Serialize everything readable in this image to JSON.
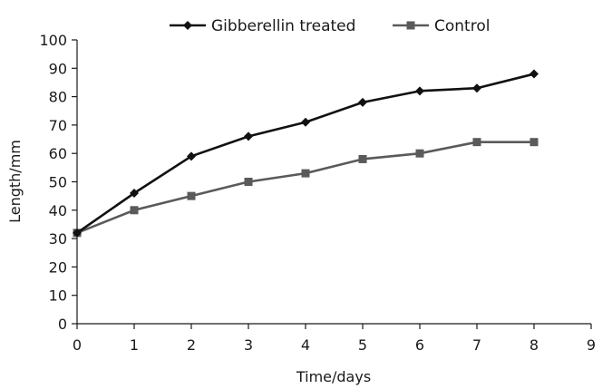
{
  "chart_data": {
    "type": "line",
    "title": "",
    "xlabel": "Time/days",
    "ylabel": "Length/mm",
    "xlim": [
      0,
      9
    ],
    "ylim": [
      0,
      100
    ],
    "x_ticks": [
      "0",
      "1",
      "2",
      "3",
      "4",
      "5",
      "6",
      "7",
      "8",
      "9"
    ],
    "y_ticks": [
      "0",
      "10",
      "20",
      "30",
      "40",
      "50",
      "60",
      "70",
      "80",
      "90",
      "100"
    ],
    "grid": false,
    "legend_position": "top",
    "x": [
      0,
      1,
      2,
      3,
      4,
      5,
      6,
      7,
      8
    ],
    "series": [
      {
        "name": "Gibberellin treated",
        "marker": "diamond",
        "color": "#111111",
        "values": [
          32,
          46,
          59,
          66,
          71,
          78,
          82,
          83,
          88
        ]
      },
      {
        "name": "Control",
        "marker": "square",
        "color": "#5a5a5a",
        "values": [
          32,
          40,
          45,
          50,
          53,
          58,
          60,
          64,
          64
        ]
      }
    ]
  }
}
